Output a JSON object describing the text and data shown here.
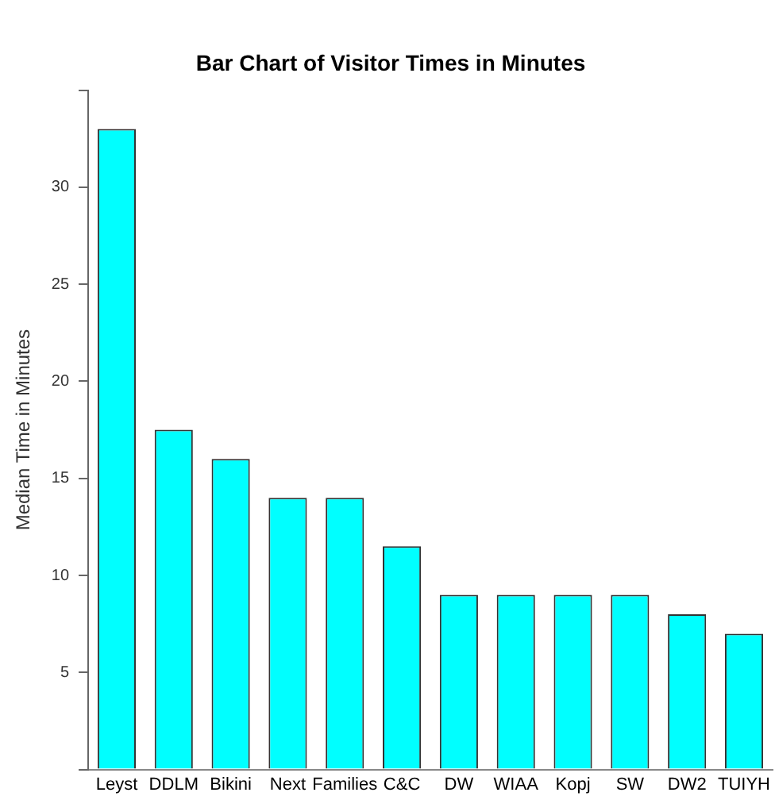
{
  "chart_data": {
    "type": "bar",
    "title": "Bar Chart of Visitor Times in Minutes",
    "ylabel": "Median Time in Minutes",
    "categories": [
      "Leyst",
      "DDLM",
      "Bikini",
      "Next",
      "Families",
      "C&C",
      "DW",
      "WIAA",
      "Kopj",
      "SW",
      "DW2",
      "TUIYH"
    ],
    "values": [
      33,
      17.5,
      16,
      14,
      14,
      11.5,
      9,
      9,
      9,
      9,
      8,
      7
    ],
    "color": "#00ffff",
    "ylim": [
      0,
      35
    ],
    "yticks": [
      {
        "value": 0,
        "label": null
      },
      5,
      10,
      15,
      20,
      25,
      30,
      {
        "value": 35,
        "label": null
      }
    ],
    "grid": false,
    "legend": false
  }
}
